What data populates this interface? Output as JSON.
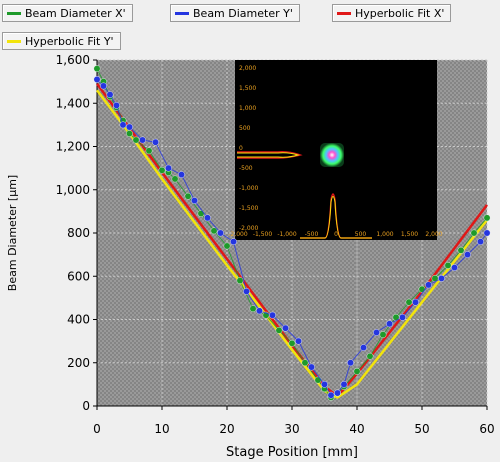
{
  "chart_data": {
    "type": "scatter",
    "xlabel": "Stage Position [mm]",
    "ylabel": "Beam Diameter [µm]",
    "xlim": [
      0,
      60
    ],
    "ylim": [
      0,
      1600
    ],
    "xticks": [
      0,
      10,
      20,
      30,
      40,
      50,
      60
    ],
    "yticks": [
      0,
      200,
      400,
      600,
      800,
      1000,
      1200,
      1400,
      1600
    ],
    "ytick_labels": [
      "0",
      "200",
      "400",
      "600",
      "800",
      "1,000",
      "1,200",
      "1,400",
      "1,600"
    ],
    "grid": true,
    "legend_position": "top",
    "series": [
      {
        "name": "Beam Diameter X'",
        "kind": "points",
        "color": "#1e9a2a",
        "x": [
          0,
          1,
          2,
          3,
          4,
          5,
          6,
          8,
          10,
          11,
          12,
          14,
          16,
          18,
          20,
          22,
          24,
          26,
          28,
          30,
          32,
          34,
          35,
          36,
          37,
          38,
          40,
          42,
          44,
          46,
          48,
          50,
          52,
          54,
          56,
          58,
          60
        ],
        "y": [
          1560,
          1500,
          1430,
          1380,
          1320,
          1260,
          1230,
          1180,
          1090,
          1080,
          1050,
          970,
          890,
          810,
          740,
          580,
          450,
          420,
          350,
          290,
          200,
          120,
          80,
          40,
          60,
          90,
          160,
          230,
          330,
          410,
          480,
          540,
          590,
          650,
          720,
          800,
          870
        ]
      },
      {
        "name": "Beam Diameter Y'",
        "kind": "points",
        "color": "#2536e0",
        "x": [
          0,
          1,
          2,
          3,
          4,
          5,
          7,
          9,
          11,
          13,
          15,
          17,
          19,
          21,
          23,
          25,
          27,
          29,
          31,
          33,
          35,
          36,
          37,
          38,
          39,
          41,
          43,
          45,
          47,
          49,
          51,
          53,
          55,
          57,
          59,
          60
        ],
        "y": [
          1510,
          1480,
          1440,
          1390,
          1300,
          1290,
          1230,
          1220,
          1100,
          1070,
          950,
          870,
          800,
          760,
          530,
          440,
          420,
          360,
          300,
          180,
          100,
          50,
          60,
          100,
          200,
          270,
          340,
          380,
          410,
          480,
          560,
          590,
          640,
          700,
          760,
          800
        ]
      },
      {
        "name": "Hyperbolic Fit X'",
        "kind": "line",
        "color": "#e01818",
        "x": [
          0,
          5,
          10,
          15,
          20,
          25,
          30,
          35,
          37,
          40,
          45,
          50,
          55,
          60
        ],
        "y": [
          1490,
          1285,
          1080,
          880,
          680,
          480,
          280,
          90,
          45,
          150,
          340,
          530,
          730,
          930
        ]
      },
      {
        "name": "Hyperbolic Fit Y'",
        "kind": "line",
        "color": "#f2e40c",
        "x": [
          0,
          5,
          10,
          15,
          20,
          25,
          30,
          35,
          37,
          40,
          45,
          50,
          55,
          60
        ],
        "y": [
          1460,
          1260,
          1050,
          850,
          650,
          460,
          260,
          70,
          40,
          100,
          290,
          480,
          670,
          860
        ]
      }
    ],
    "inset": {
      "description_type": "beam profile image",
      "x_ticks": [
        "-2,000",
        "-1,500",
        "-1,000",
        "-500",
        "0",
        "500",
        "1,000",
        "1,500",
        "2,000"
      ],
      "y_ticks": [
        "2,000",
        "1,500",
        "1,000",
        "500",
        "0",
        "-500",
        "-1,000",
        "-1,500",
        "-2,000"
      ]
    }
  },
  "legend": {
    "item_1": "Beam Diameter X'",
    "item_2": "Beam Diameter Y'",
    "item_3": "Hyperbolic Fit X'",
    "item_4": "Hyperbolic Fit Y'"
  }
}
